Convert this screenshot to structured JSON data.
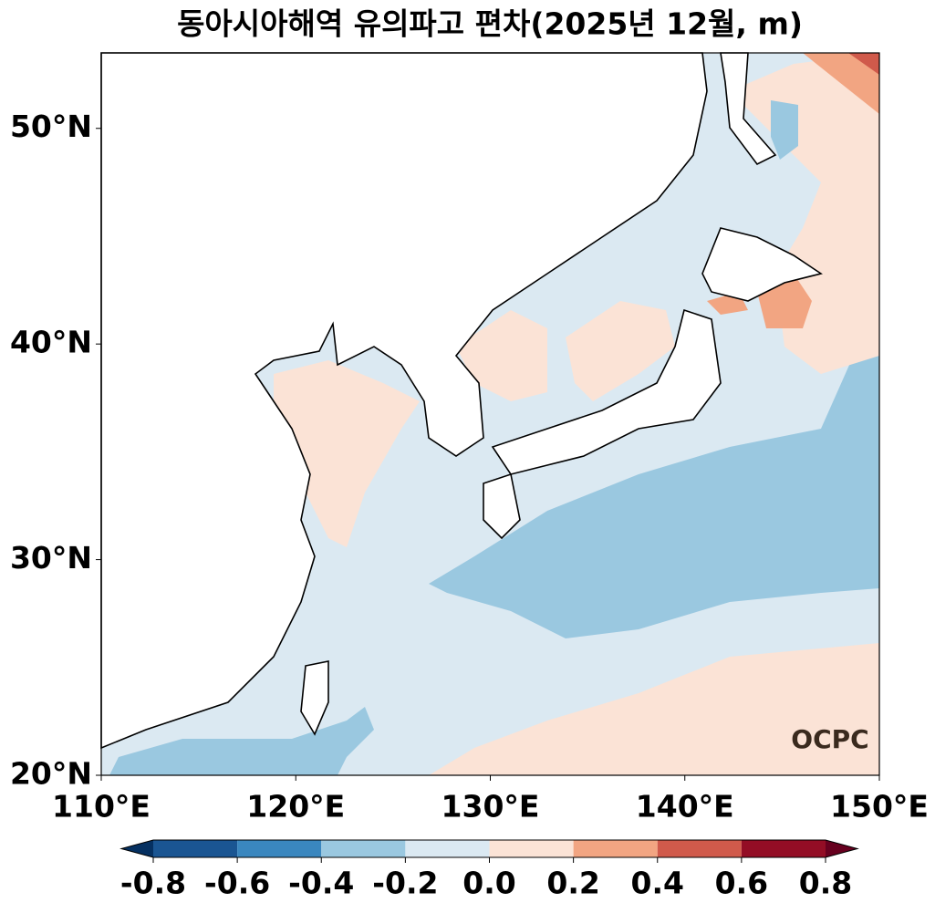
{
  "title": "동아시아해역 유의파고 편차(2025년 12월, m)",
  "map": {
    "xlim": [
      110,
      150
    ],
    "ylim": [
      20,
      53.5
    ],
    "xticks": [
      {
        "value": 110,
        "label": "110°E"
      },
      {
        "value": 120,
        "label": "120°E"
      },
      {
        "value": 130,
        "label": "130°E"
      },
      {
        "value": 140,
        "label": "140°E"
      },
      {
        "value": 150,
        "label": "150°E"
      }
    ],
    "yticks": [
      {
        "value": 20,
        "label": "20°N"
      },
      {
        "value": 30,
        "label": "30°N"
      },
      {
        "value": 40,
        "label": "40°N"
      },
      {
        "value": 50,
        "label": "50°N"
      }
    ]
  },
  "colorbar": {
    "ticks": [
      -0.8,
      -0.6,
      -0.4,
      -0.2,
      {
        "value": 0,
        "label": "0.0"
      },
      0.2,
      0.4,
      0.6,
      0.8
    ],
    "colors": [
      "#1a5592",
      "#3a87bf",
      "#9ac8e0",
      "#dbe9f2",
      "#fbe3d6",
      "#f2a582",
      "#d05a4b",
      "#930d25"
    ],
    "extend_colors": [
      "#053061",
      "#67001f"
    ]
  },
  "logo": "OCPC"
}
